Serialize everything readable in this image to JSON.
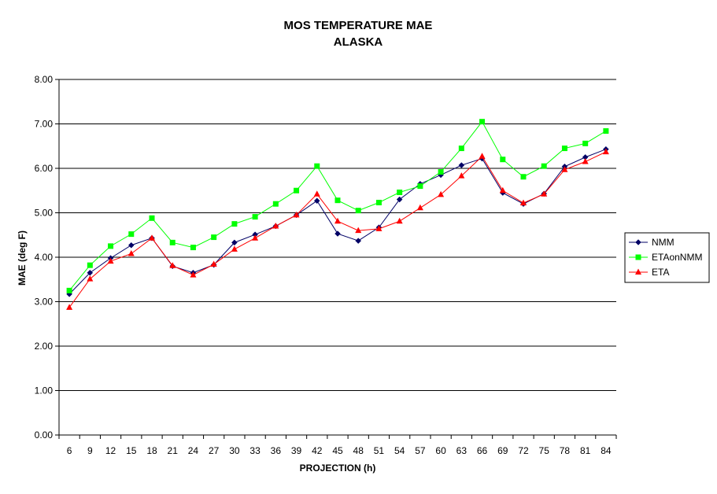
{
  "chart_data": {
    "type": "line",
    "title": "MOS TEMPERATURE MAE",
    "subtitle": "ALASKA",
    "xlabel": "PROJECTION (h)",
    "ylabel": "MAE (deg F)",
    "ylim": [
      0,
      8
    ],
    "y_ticks": [
      "0.00",
      "1.00",
      "2.00",
      "3.00",
      "4.00",
      "5.00",
      "6.00",
      "7.00",
      "8.00"
    ],
    "categories": [
      "6",
      "9",
      "12",
      "15",
      "18",
      "21",
      "24",
      "27",
      "30",
      "33",
      "36",
      "39",
      "42",
      "45",
      "48",
      "51",
      "54",
      "57",
      "60",
      "63",
      "66",
      "69",
      "72",
      "75",
      "78",
      "81",
      "84"
    ],
    "grid": "horizontal",
    "legend_position": "right",
    "series": [
      {
        "name": "NMM",
        "color": "#000066",
        "marker": "diamond",
        "values": [
          3.17,
          3.65,
          3.98,
          4.27,
          4.43,
          3.8,
          3.65,
          3.83,
          4.33,
          4.51,
          4.7,
          4.95,
          5.27,
          4.53,
          4.37,
          4.67,
          5.3,
          5.65,
          5.85,
          6.07,
          6.22,
          5.45,
          5.2,
          5.43,
          6.04,
          6.25,
          6.43
        ]
      },
      {
        "name": "ETAonNMM",
        "color": "#00ff00",
        "marker": "square",
        "values": [
          3.25,
          3.82,
          4.25,
          4.52,
          4.88,
          4.33,
          4.22,
          4.45,
          4.75,
          4.91,
          5.2,
          5.5,
          6.05,
          5.28,
          5.05,
          5.23,
          5.46,
          5.6,
          5.92,
          6.45,
          7.05,
          6.2,
          5.81,
          6.05,
          6.45,
          6.56,
          6.84
        ]
      },
      {
        "name": "ETA",
        "color": "#ff0000",
        "marker": "triangle",
        "values": [
          2.87,
          3.51,
          3.91,
          4.08,
          4.43,
          3.81,
          3.6,
          3.84,
          4.18,
          4.43,
          4.7,
          4.95,
          5.42,
          4.81,
          4.6,
          4.64,
          4.81,
          5.11,
          5.41,
          5.83,
          6.27,
          5.5,
          5.22,
          5.42,
          5.97,
          6.15,
          6.37
        ]
      }
    ]
  }
}
